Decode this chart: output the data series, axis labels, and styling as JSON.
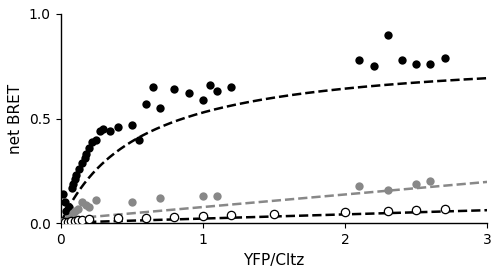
{
  "title": "",
  "xlabel": "YFP/Cltz",
  "ylabel": "net BRET",
  "xlim": [
    0,
    3
  ],
  "ylim": [
    0,
    1.0
  ],
  "xticks": [
    0,
    1,
    2,
    3
  ],
  "yticks": [
    0.0,
    0.5,
    1.0
  ],
  "black_x": [
    0.02,
    0.03,
    0.04,
    0.05,
    0.06,
    0.08,
    0.09,
    0.1,
    0.11,
    0.13,
    0.15,
    0.17,
    0.18,
    0.2,
    0.22,
    0.25,
    0.28,
    0.3,
    0.35,
    0.4,
    0.5,
    0.55,
    0.6,
    0.65,
    0.7,
    0.8,
    0.9,
    1.0,
    1.05,
    1.1,
    1.2,
    2.1,
    2.2,
    2.3,
    2.4,
    2.5,
    2.6,
    2.7
  ],
  "black_y": [
    0.14,
    0.1,
    0.06,
    0.07,
    0.08,
    0.17,
    0.19,
    0.21,
    0.23,
    0.26,
    0.29,
    0.31,
    0.33,
    0.36,
    0.39,
    0.4,
    0.44,
    0.45,
    0.44,
    0.46,
    0.47,
    0.4,
    0.57,
    0.65,
    0.55,
    0.64,
    0.62,
    0.59,
    0.66,
    0.63,
    0.65,
    0.78,
    0.75,
    0.9,
    0.78,
    0.76,
    0.76,
    0.79
  ],
  "gray_x": [
    0.05,
    0.07,
    0.09,
    0.1,
    0.12,
    0.15,
    0.18,
    0.2,
    0.25,
    0.5,
    0.7,
    1.0,
    1.1,
    2.1,
    2.3,
    2.5,
    2.6
  ],
  "gray_y": [
    0.02,
    0.03,
    0.05,
    0.06,
    0.07,
    0.1,
    0.09,
    0.08,
    0.11,
    0.1,
    0.12,
    0.13,
    0.13,
    0.18,
    0.16,
    0.19,
    0.2
  ],
  "white_x": [
    0.03,
    0.05,
    0.07,
    0.1,
    0.12,
    0.15,
    0.2,
    0.4,
    0.6,
    0.8,
    1.0,
    1.2,
    1.5,
    2.0,
    2.3,
    2.5,
    2.7
  ],
  "white_y": [
    0.005,
    0.005,
    0.01,
    0.01,
    0.015,
    0.015,
    0.02,
    0.025,
    0.025,
    0.03,
    0.035,
    0.04,
    0.045,
    0.055,
    0.06,
    0.065,
    0.07
  ],
  "black_bret_max": 0.82,
  "black_kd": 0.55,
  "gray_slope": 0.06,
  "gray_intercept": 0.018,
  "white_slope": 0.02,
  "white_intercept": 0.003,
  "black_color": "#000000",
  "gray_color": "#888888",
  "white_color": "#ffffff",
  "white_edge_color": "#000000",
  "line_color": "#000000",
  "dash_style": "--",
  "line_width": 1.8,
  "marker_size": 6,
  "background_color": "#ffffff"
}
